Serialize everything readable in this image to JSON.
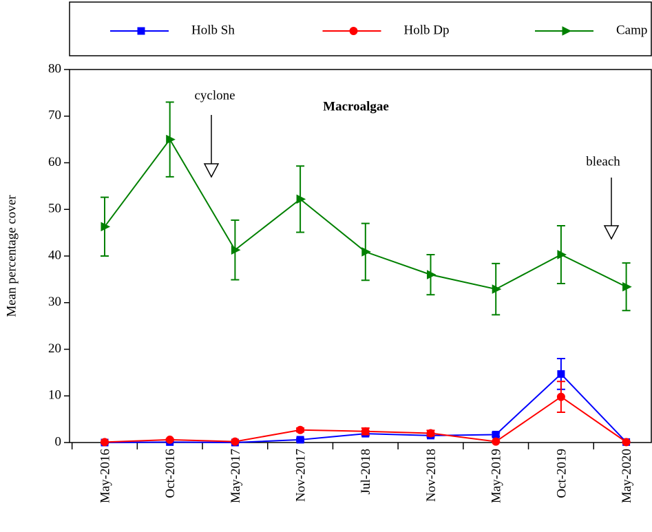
{
  "chart_data": {
    "type": "line",
    "title": "Macroalgae",
    "y_label": "Mean percentage cover",
    "categories": [
      "May-2016",
      "Oct-2016",
      "May-2017",
      "Nov-2017",
      "Jul-2018",
      "Nov-2018",
      "May-2019",
      "Oct-2019",
      "May-2020"
    ],
    "series": [
      {
        "name": "Holb Sh",
        "color": "#0000ff",
        "marker": "square",
        "values": [
          0,
          0.1,
          0,
          0.6,
          1.9,
          1.5,
          1.7,
          14.7,
          0.1
        ],
        "errors": [
          0.2,
          0.1,
          0.1,
          0.3,
          0.4,
          0.3,
          0.4,
          3.3,
          0.1
        ]
      },
      {
        "name": "Holb Dp",
        "color": "#ff0000",
        "marker": "circle",
        "values": [
          0.1,
          0.6,
          0.2,
          2.7,
          2.4,
          2.0,
          0.2,
          9.8,
          0.1
        ],
        "errors": [
          0.1,
          0.2,
          0.1,
          0.4,
          0.7,
          0.6,
          0.1,
          3.3,
          0.1
        ]
      },
      {
        "name": "Camp",
        "color": "#008000",
        "marker": "triangle-right",
        "values": [
          46.3,
          65,
          41.3,
          52.2,
          40.9,
          36,
          32.9,
          40.3,
          33.4
        ],
        "errors": [
          6.3,
          8,
          6.4,
          7.1,
          6.1,
          4.3,
          5.5,
          6.2,
          5.1
        ]
      }
    ],
    "annotations": [
      {
        "text": "cyclone"
      },
      {
        "text": "bleach"
      }
    ],
    "ylim": [
      0,
      80
    ],
    "yticks": [
      0,
      10,
      20,
      30,
      40,
      50,
      60,
      70,
      80
    ]
  }
}
